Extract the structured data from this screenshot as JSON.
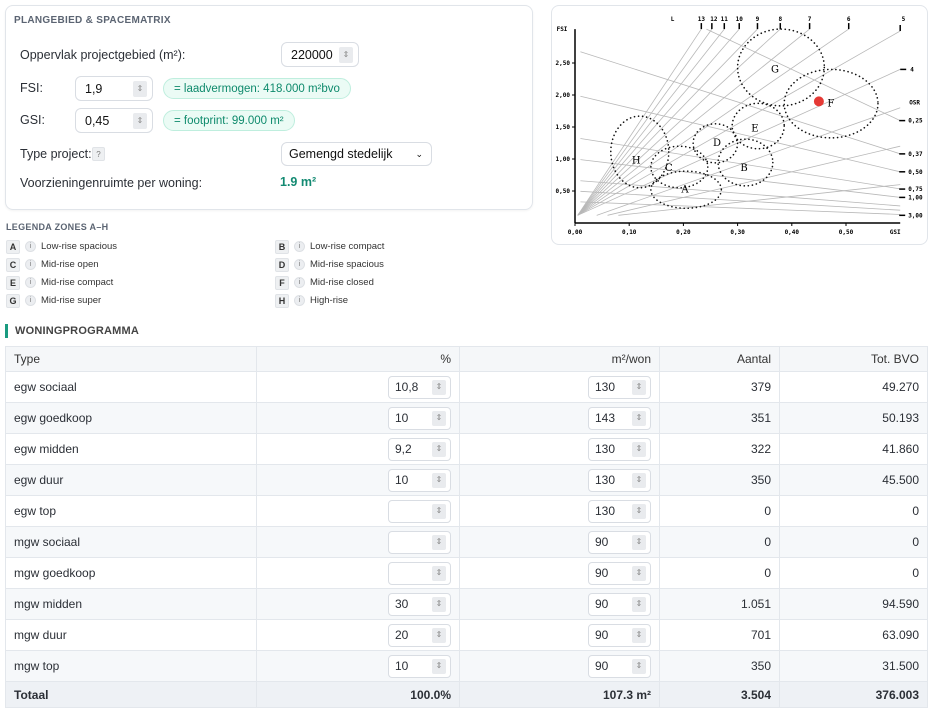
{
  "panel": {
    "title": "PLANGEBIED & SPACEMATRIX",
    "area_label": "Oppervlak projectgebied (m²):",
    "area_value": "220000",
    "fsi_label": "FSI:",
    "fsi_value": "1,9",
    "fsi_result": "= laadvermogen: 418.000 m²bvo",
    "gsi_label": "GSI:",
    "gsi_value": "0,45",
    "gsi_result": "= footprint: 99.000 m²",
    "type_label": "Type project:",
    "help": "?",
    "type_value": "Gemengd stedelijk",
    "vz_label": "Voorzieningenruimte per woning:",
    "vz_value": "1.9 m²"
  },
  "legend": {
    "title": "LEGENDA ZONES A–H",
    "info": "i",
    "items": [
      {
        "code": "A",
        "label": "Low-rise spacious"
      },
      {
        "code": "B",
        "label": "Low-rise compact"
      },
      {
        "code": "C",
        "label": "Mid-rise open"
      },
      {
        "code": "D",
        "label": "Mid-rise spacious"
      },
      {
        "code": "E",
        "label": "Mid-rise compact"
      },
      {
        "code": "F",
        "label": "Mid-rise closed"
      },
      {
        "code": "G",
        "label": "Mid-rise super"
      },
      {
        "code": "H",
        "label": "High-rise"
      }
    ]
  },
  "chart_data": {
    "type": "scatter",
    "xlabel": "GSI",
    "ylabel": "FSI",
    "xlim": [
      0,
      0.6
    ],
    "ylim": [
      0,
      3
    ],
    "xticks": [
      "0,00",
      "0,10",
      "0,20",
      "0,30",
      "0,40",
      "0,50"
    ],
    "yticks": [
      "0,50",
      "1,00",
      "1,50",
      "2,00",
      "2,50"
    ],
    "L_title": "L",
    "L_values": [
      13,
      12,
      11,
      10,
      9,
      8,
      7,
      6,
      5,
      4,
      3,
      2,
      1
    ],
    "L_labels": [
      "13",
      "12",
      "11",
      "10",
      "9",
      "8",
      "7",
      "6",
      "5",
      "4"
    ],
    "OSR_title": "OSR",
    "OSR_values": [
      0.25,
      0.37,
      0.5,
      0.75,
      1.0,
      1.5,
      2.0,
      3.0
    ],
    "OSR_labels": [
      "0,25",
      "0,37",
      "0,50",
      "0,75",
      "1,00",
      "3,00"
    ],
    "zones": [
      {
        "code": "G",
        "gsi": [
          0.3,
          0.46
        ],
        "fsi": [
          1.83,
          3.03
        ],
        "label_at": [
          0.369,
          2.4
        ]
      },
      {
        "code": "F",
        "gsi": [
          0.386,
          0.559
        ],
        "fsi": [
          1.33,
          2.4
        ],
        "label_at": [
          0.472,
          1.87
        ]
      },
      {
        "code": "E",
        "gsi": [
          0.29,
          0.386
        ],
        "fsi": [
          1.16,
          1.87
        ],
        "label_at": [
          0.332,
          1.48
        ]
      },
      {
        "code": "D",
        "gsi": [
          0.218,
          0.3
        ],
        "fsi": [
          0.94,
          1.55
        ],
        "label_at": [
          0.262,
          1.25
        ]
      },
      {
        "code": "B",
        "gsi": [
          0.264,
          0.365
        ],
        "fsi": [
          0.58,
          1.31
        ],
        "label_at": [
          0.312,
          0.86
        ]
      },
      {
        "code": "C",
        "gsi": [
          0.14,
          0.245
        ],
        "fsi": [
          0.55,
          1.2
        ],
        "label_at": [
          0.173,
          0.86
        ]
      },
      {
        "code": "A",
        "gsi": [
          0.14,
          0.27
        ],
        "fsi": [
          0.23,
          0.81
        ],
        "label_at": [
          0.203,
          0.52
        ]
      },
      {
        "code": "H",
        "gsi": [
          0.066,
          0.173
        ],
        "fsi": [
          0.55,
          1.67
        ],
        "label_at": [
          0.113,
          0.98
        ]
      }
    ],
    "point": {
      "gsi": 0.45,
      "fsi": 1.9,
      "color": "#e53935"
    }
  },
  "program": {
    "title": "WONINGPROGRAMMA",
    "headers": [
      "Type",
      "%",
      "m²/won",
      "Aantal",
      "Tot. BVO"
    ],
    "rows": [
      {
        "type": "egw sociaal",
        "pct": "10,8",
        "m2": "130",
        "aantal": "379",
        "bvo": "49.270"
      },
      {
        "type": "egw goedkoop",
        "pct": "10",
        "m2": "143",
        "aantal": "351",
        "bvo": "50.193"
      },
      {
        "type": "egw midden",
        "pct": "9,2",
        "m2": "130",
        "aantal": "322",
        "bvo": "41.860"
      },
      {
        "type": "egw duur",
        "pct": "10",
        "m2": "130",
        "aantal": "350",
        "bvo": "45.500"
      },
      {
        "type": "egw top",
        "pct": "",
        "m2": "130",
        "aantal": "0",
        "bvo": "0"
      },
      {
        "type": "mgw sociaal",
        "pct": "",
        "m2": "90",
        "aantal": "0",
        "bvo": "0"
      },
      {
        "type": "mgw goedkoop",
        "pct": "",
        "m2": "90",
        "aantal": "0",
        "bvo": "0"
      },
      {
        "type": "mgw midden",
        "pct": "30",
        "m2": "90",
        "aantal": "1.051",
        "bvo": "94.590"
      },
      {
        "type": "mgw duur",
        "pct": "20",
        "m2": "90",
        "aantal": "701",
        "bvo": "63.090"
      },
      {
        "type": "mgw top",
        "pct": "10",
        "m2": "90",
        "aantal": "350",
        "bvo": "31.500"
      }
    ],
    "total": {
      "label": "Totaal",
      "pct": "100.0%",
      "m2": "107.3 m²",
      "aantal": "3.504",
      "bvo": "376.003"
    }
  }
}
